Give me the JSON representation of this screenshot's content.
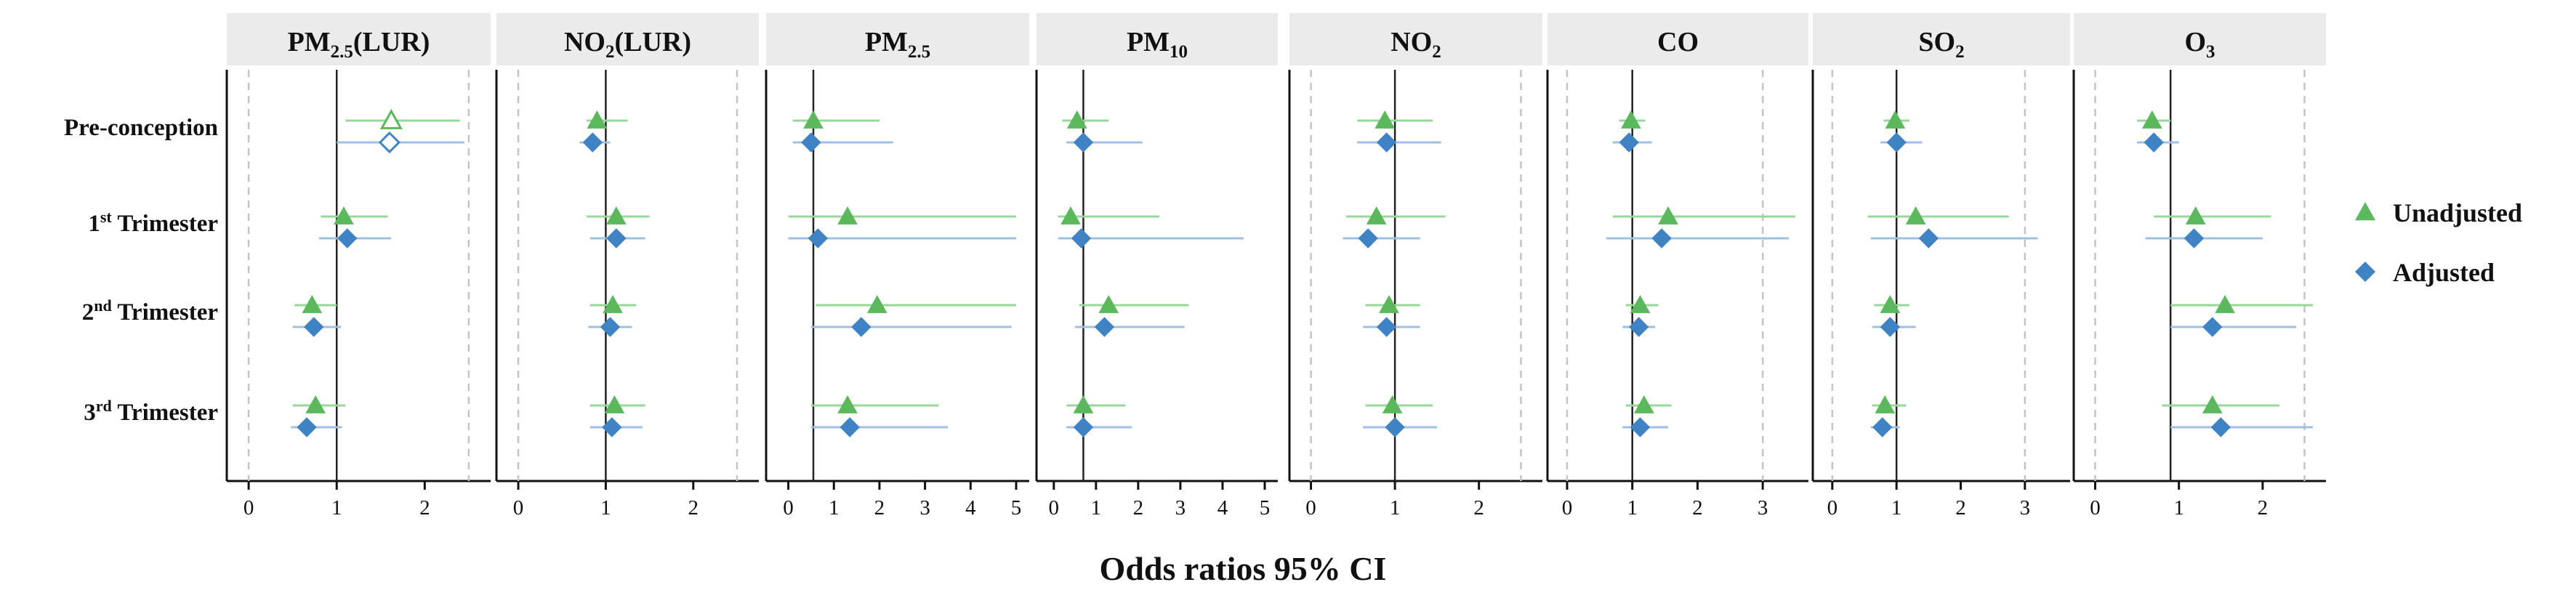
{
  "chart_data": {
    "type": "forest",
    "xlabel": "Odds ratios 95% CI",
    "rows": [
      {
        "base": "Pre-conception",
        "sup": ""
      },
      {
        "base": "1",
        "sup": "st",
        "rest": " Trimester"
      },
      {
        "base": "2",
        "sup": "nd",
        "rest": " Trimester"
      },
      {
        "base": "3",
        "sup": "rd",
        "rest": " Trimester"
      }
    ],
    "legend": [
      {
        "name": "Unadjusted",
        "marker": "triangle",
        "color": "#5cb85c"
      },
      {
        "name": "Adjusted",
        "marker": "diamond",
        "color": "#3f83c4"
      }
    ],
    "colors": {
      "unadjusted_line": "#9ad69a",
      "adjusted_line": "#9fc0e3",
      "unadjusted_marker": "#5cb85c",
      "adjusted_marker": "#3f83c4",
      "header_bg": "#ebebeb",
      "dashed": "#c4c4c4",
      "ref_line": "#222222"
    },
    "panels": [
      {
        "title": {
          "base": "PM",
          "sub": "2.5",
          "rest": "(LUR)"
        },
        "xlim": [
          -0.1,
          2.6
        ],
        "ticks": [
          0,
          1,
          2
        ],
        "ref": 1,
        "dashed": [
          0,
          2.5
        ],
        "unadjusted": [
          {
            "or": 1.62,
            "lo": 1.1,
            "hi": 2.4,
            "open": true
          },
          {
            "or": 1.08,
            "lo": 0.82,
            "hi": 1.58
          },
          {
            "or": 0.72,
            "lo": 0.52,
            "hi": 1.0
          },
          {
            "or": 0.76,
            "lo": 0.5,
            "hi": 1.1
          }
        ],
        "adjusted": [
          {
            "or": 1.6,
            "lo": 1.0,
            "hi": 2.45,
            "open": true
          },
          {
            "or": 1.12,
            "lo": 0.8,
            "hi": 1.62
          },
          {
            "or": 0.74,
            "lo": 0.5,
            "hi": 1.05
          },
          {
            "or": 0.66,
            "lo": 0.48,
            "hi": 1.06
          }
        ]
      },
      {
        "title": {
          "base": "NO",
          "sub": "2",
          "rest": "(LUR)"
        },
        "xlim": [
          -0.1,
          2.6
        ],
        "ticks": [
          0,
          1,
          2
        ],
        "ref": 1,
        "dashed": [
          0,
          2.5
        ],
        "unadjusted": [
          {
            "or": 0.9,
            "lo": 0.78,
            "hi": 1.25
          },
          {
            "or": 1.12,
            "lo": 0.78,
            "hi": 1.5
          },
          {
            "or": 1.08,
            "lo": 0.82,
            "hi": 1.35
          },
          {
            "or": 1.1,
            "lo": 0.82,
            "hi": 1.45
          }
        ],
        "adjusted": [
          {
            "or": 0.85,
            "lo": 0.7,
            "hi": 1.05
          },
          {
            "or": 1.12,
            "lo": 0.82,
            "hi": 1.45
          },
          {
            "or": 1.05,
            "lo": 0.8,
            "hi": 1.3
          },
          {
            "or": 1.07,
            "lo": 0.82,
            "hi": 1.42
          }
        ]
      },
      {
        "title": {
          "base": "PM",
          "sub": "2.5",
          "rest": ""
        },
        "xlim": [
          -0.2,
          5.0
        ],
        "ticks": [
          0,
          1,
          2,
          3,
          4,
          5
        ],
        "ref": 0.55,
        "dashed": [],
        "unadjusted": [
          {
            "or": 0.55,
            "lo": 0.1,
            "hi": 2.0
          },
          {
            "or": 1.3,
            "lo": 0.0,
            "hi": 5.0
          },
          {
            "or": 1.95,
            "lo": 0.6,
            "hi": 5.0
          },
          {
            "or": 1.3,
            "lo": 0.5,
            "hi": 3.3
          }
        ],
        "adjusted": [
          {
            "or": 0.5,
            "lo": 0.1,
            "hi": 2.3
          },
          {
            "or": 0.65,
            "lo": 0.0,
            "hi": 5.0
          },
          {
            "or": 1.6,
            "lo": 0.5,
            "hi": 4.9
          },
          {
            "or": 1.35,
            "lo": 0.5,
            "hi": 3.5
          }
        ]
      },
      {
        "title": {
          "base": "PM",
          "sub": "10",
          "rest": ""
        },
        "xlim": [
          -0.1,
          5.0
        ],
        "ticks": [
          0,
          1,
          2,
          3,
          4,
          5
        ],
        "ref": 0.7,
        "dashed": [],
        "unadjusted": [
          {
            "or": 0.55,
            "lo": 0.2,
            "hi": 1.3
          },
          {
            "or": 0.4,
            "lo": 0.1,
            "hi": 2.5
          },
          {
            "or": 1.3,
            "lo": 0.6,
            "hi": 3.2
          },
          {
            "or": 0.7,
            "lo": 0.3,
            "hi": 1.7
          }
        ],
        "adjusted": [
          {
            "or": 0.7,
            "lo": 0.3,
            "hi": 2.1
          },
          {
            "or": 0.65,
            "lo": 0.1,
            "hi": 4.5
          },
          {
            "or": 1.2,
            "lo": 0.5,
            "hi": 3.1
          },
          {
            "or": 0.7,
            "lo": 0.3,
            "hi": 1.85
          }
        ]
      },
      {
        "title": {
          "base": "NO",
          "sub": "2",
          "rest": ""
        },
        "xlim": [
          -0.1,
          2.6
        ],
        "ticks": [
          0,
          1,
          2
        ],
        "ref": 1,
        "dashed": [
          0,
          2.5
        ],
        "unadjusted": [
          {
            "or": 0.88,
            "lo": 0.55,
            "hi": 1.45
          },
          {
            "or": 0.78,
            "lo": 0.42,
            "hi": 1.6
          },
          {
            "or": 0.93,
            "lo": 0.65,
            "hi": 1.3
          },
          {
            "or": 0.97,
            "lo": 0.65,
            "hi": 1.45
          }
        ],
        "adjusted": [
          {
            "or": 0.9,
            "lo": 0.55,
            "hi": 1.55
          },
          {
            "or": 0.68,
            "lo": 0.38,
            "hi": 1.3
          },
          {
            "or": 0.9,
            "lo": 0.62,
            "hi": 1.3
          },
          {
            "or": 1.0,
            "lo": 0.62,
            "hi": 1.5
          }
        ]
      },
      {
        "title": {
          "base": "CO",
          "sub": "",
          "rest": ""
        },
        "xlim": [
          -0.1,
          3.5
        ],
        "ticks": [
          0,
          1,
          2,
          3
        ],
        "ref": 1,
        "dashed": [
          0,
          3.0
        ],
        "unadjusted": [
          {
            "or": 0.98,
            "lo": 0.8,
            "hi": 1.2
          },
          {
            "or": 1.55,
            "lo": 0.7,
            "hi": 3.5
          },
          {
            "or": 1.12,
            "lo": 0.9,
            "hi": 1.4
          },
          {
            "or": 1.18,
            "lo": 0.9,
            "hi": 1.6
          }
        ],
        "adjusted": [
          {
            "or": 0.95,
            "lo": 0.7,
            "hi": 1.3
          },
          {
            "or": 1.45,
            "lo": 0.6,
            "hi": 3.4
          },
          {
            "or": 1.1,
            "lo": 0.85,
            "hi": 1.35
          },
          {
            "or": 1.12,
            "lo": 0.85,
            "hi": 1.55
          }
        ]
      },
      {
        "title": {
          "base": "SO",
          "sub": "2",
          "rest": ""
        },
        "xlim": [
          -0.1,
          3.5
        ],
        "ticks": [
          0,
          1,
          2,
          3
        ],
        "ref": 1,
        "dashed": [
          0,
          3.0
        ],
        "unadjusted": [
          {
            "or": 0.98,
            "lo": 0.8,
            "hi": 1.2
          },
          {
            "or": 1.3,
            "lo": 0.55,
            "hi": 2.75
          },
          {
            "or": 0.9,
            "lo": 0.65,
            "hi": 1.2
          },
          {
            "or": 0.82,
            "lo": 0.62,
            "hi": 1.15
          }
        ],
        "adjusted": [
          {
            "or": 1.0,
            "lo": 0.75,
            "hi": 1.4
          },
          {
            "or": 1.5,
            "lo": 0.6,
            "hi": 3.2
          },
          {
            "or": 0.9,
            "lo": 0.62,
            "hi": 1.3
          },
          {
            "or": 0.78,
            "lo": 0.6,
            "hi": 1.05
          }
        ]
      },
      {
        "title": {
          "base": "O",
          "sub": "3",
          "rest": ""
        },
        "xlim": [
          -0.1,
          2.6
        ],
        "ticks": [
          0,
          1,
          2
        ],
        "ref": 0.9,
        "dashed": [
          0,
          2.5
        ],
        "unadjusted": [
          {
            "or": 0.68,
            "lo": 0.5,
            "hi": 0.9
          },
          {
            "or": 1.2,
            "lo": 0.7,
            "hi": 2.1
          },
          {
            "or": 1.55,
            "lo": 0.9,
            "hi": 2.6
          },
          {
            "or": 1.4,
            "lo": 0.8,
            "hi": 2.2
          }
        ],
        "adjusted": [
          {
            "or": 0.7,
            "lo": 0.5,
            "hi": 1.0
          },
          {
            "or": 1.18,
            "lo": 0.6,
            "hi": 2.0
          },
          {
            "or": 1.4,
            "lo": 0.9,
            "hi": 2.4
          },
          {
            "or": 1.5,
            "lo": 0.9,
            "hi": 2.6
          }
        ]
      }
    ]
  }
}
